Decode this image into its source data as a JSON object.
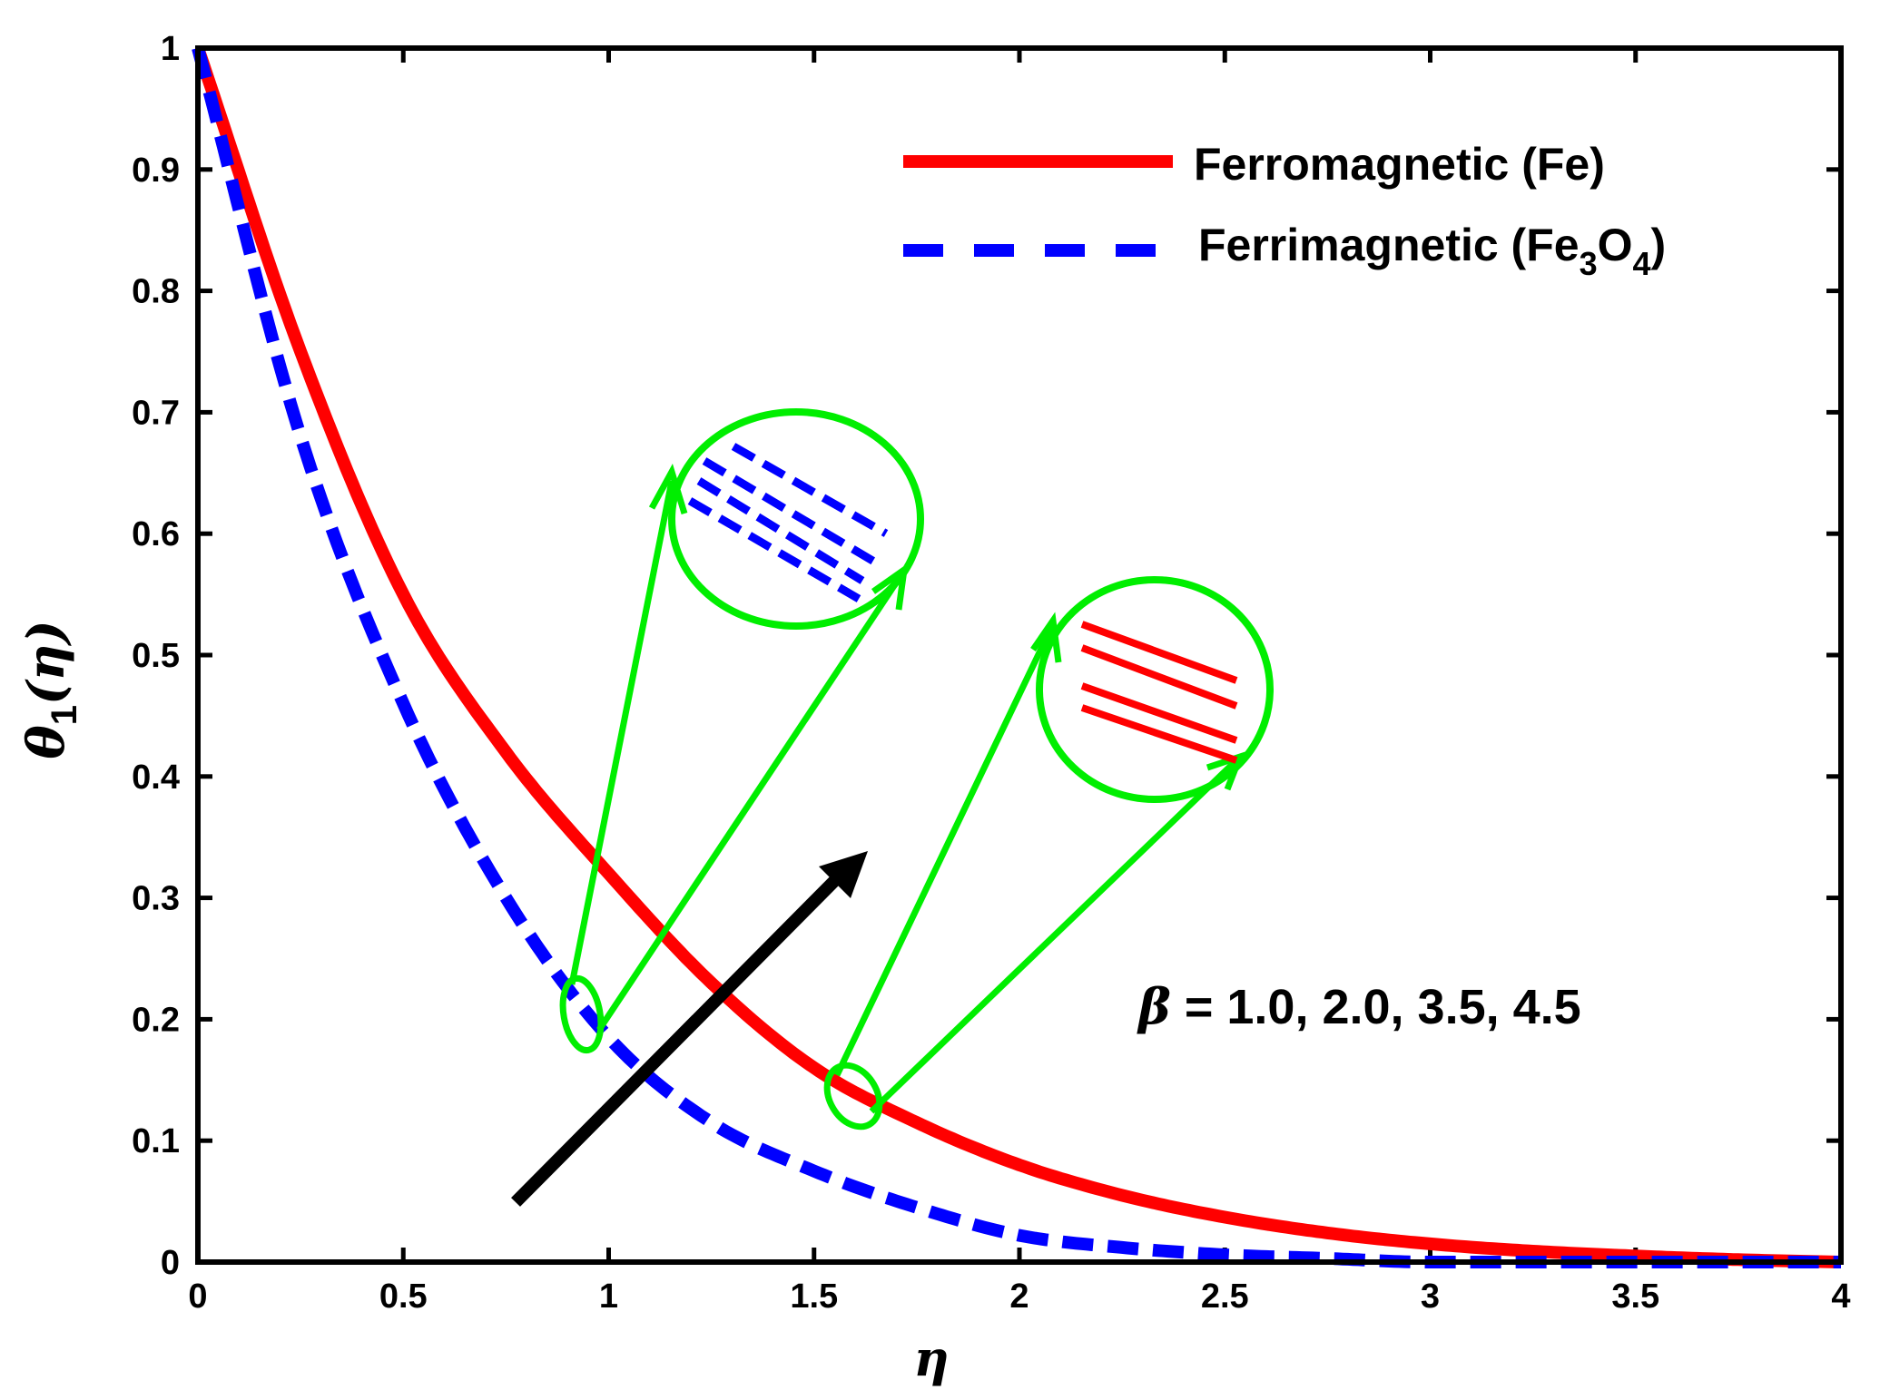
{
  "chart_data": {
    "type": "line",
    "xlabel": "η",
    "ylabel_main": "θ",
    "ylabel_sub": "1",
    "ylabel_arg": "(η)",
    "xlim": [
      0,
      4
    ],
    "ylim": [
      0,
      1
    ],
    "xticks": [
      0,
      0.5,
      1,
      1.5,
      2,
      2.5,
      3,
      3.5,
      4
    ],
    "xtick_labels": [
      "0",
      "0.5",
      "1",
      "1.5",
      "2",
      "2.5",
      "3",
      "3.5",
      "4"
    ],
    "yticks": [
      0,
      0.1,
      0.2,
      0.3,
      0.4,
      0.5,
      0.6,
      0.7,
      0.8,
      0.9,
      1
    ],
    "ytick_labels": [
      "0",
      "0.1",
      "0.2",
      "0.3",
      "0.4",
      "0.5",
      "0.6",
      "0.7",
      "0.8",
      "0.9",
      "1"
    ],
    "grid": false,
    "legend_position": "top-right",
    "x": [
      0,
      0.25,
      0.5,
      0.75,
      1.0,
      1.25,
      1.5,
      1.75,
      2.0,
      2.25,
      2.5,
      2.75,
      3.0,
      3.25,
      3.5,
      3.75,
      4.0
    ],
    "series": [
      {
        "name": "Ferromagnetic (Fe)",
        "color": "#ff0000",
        "style": "solid",
        "values": [
          1.0,
          0.75,
          0.55,
          0.42,
          0.32,
          0.23,
          0.16,
          0.115,
          0.08,
          0.055,
          0.037,
          0.024,
          0.015,
          0.009,
          0.005,
          0.002,
          0.0
        ]
      },
      {
        "name": "Ferrimagnetic (Fe3O4)",
        "name_parts": [
          "Ferrimagnetic (Fe",
          "3",
          "O",
          "4",
          ")"
        ],
        "color": "#0000ff",
        "style": "dashed",
        "values": [
          1.0,
          0.68,
          0.46,
          0.3,
          0.185,
          0.115,
          0.075,
          0.045,
          0.022,
          0.012,
          0.006,
          0.003,
          0.0,
          0.0,
          0.0,
          0.0,
          0.0
        ]
      }
    ],
    "annotation": {
      "beta_symbol": "β",
      "text": " = 1.0, 2.0, 3.5, 4.5"
    }
  }
}
